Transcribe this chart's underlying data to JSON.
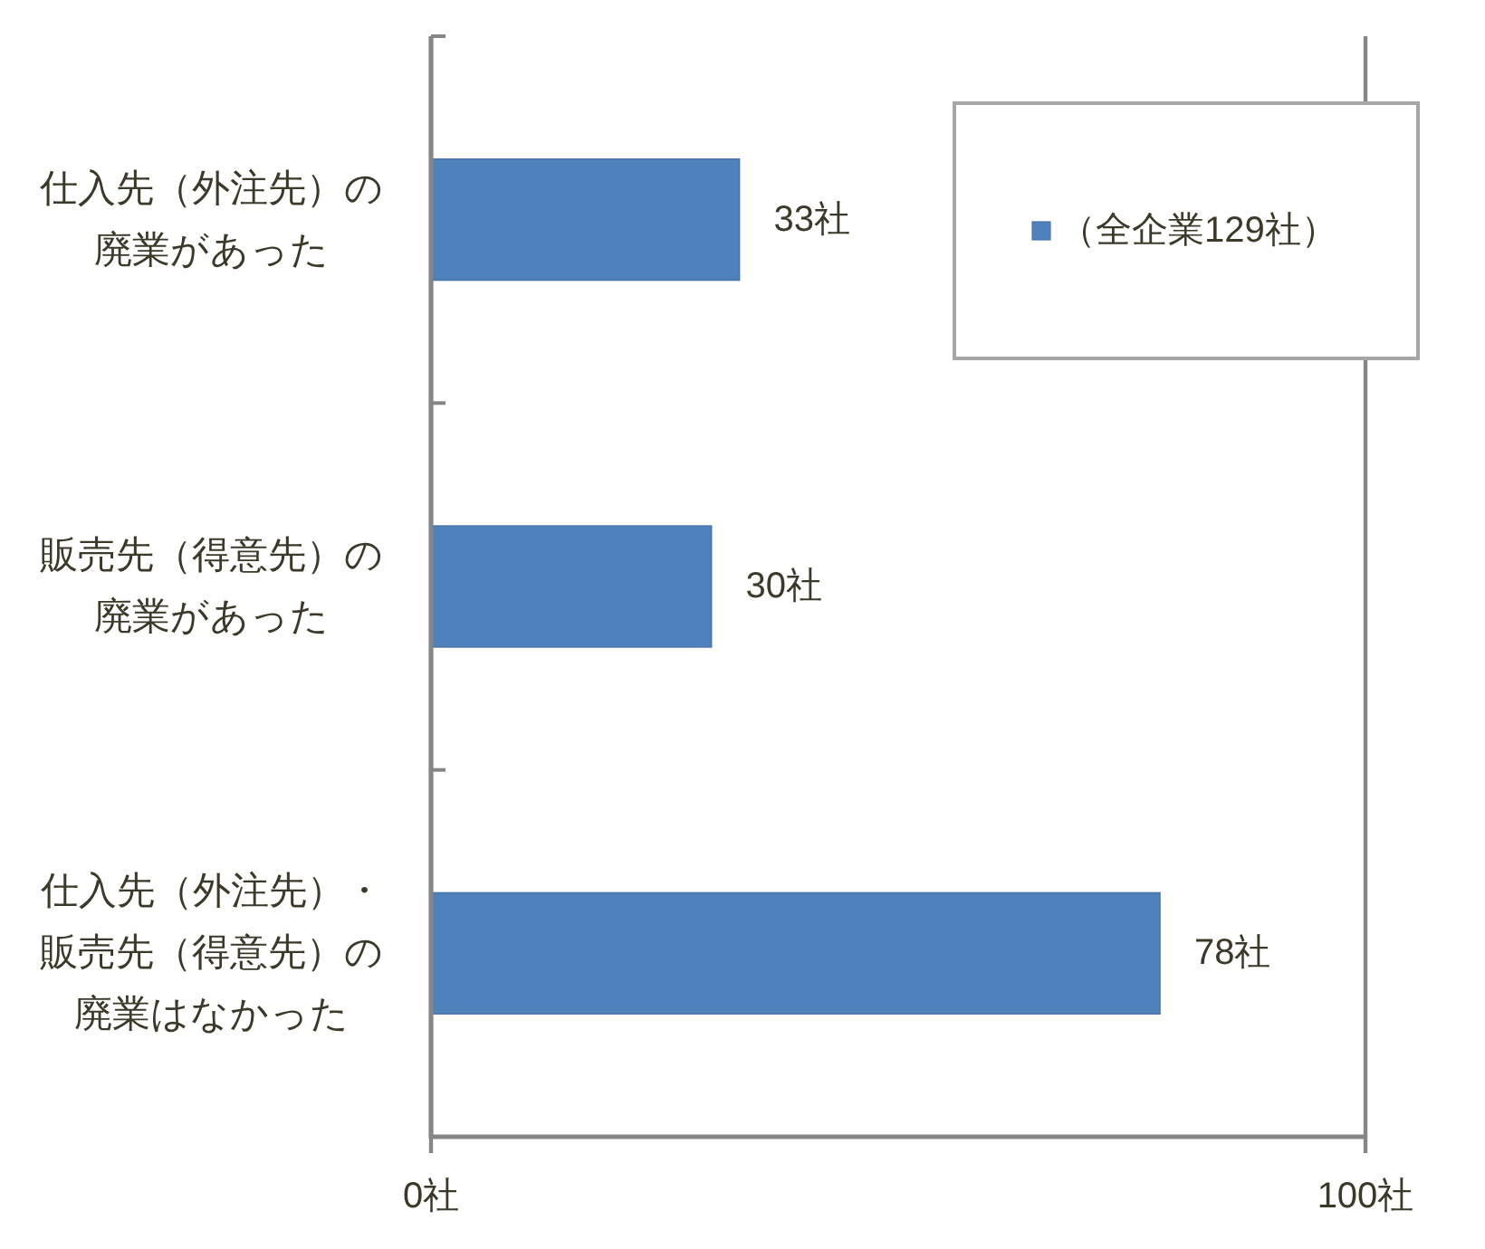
{
  "chart_data": {
    "type": "bar",
    "orientation": "horizontal",
    "categories": [
      "仕入先（外注先）の廃業があった",
      "販売先（得意先）の廃業があった",
      "仕入先（外注先）・販売先（得意先）の廃業はなかった"
    ],
    "series": [
      {
        "name": "（全企業129社）",
        "color": "#4f81bd",
        "values": [
          33,
          30,
          78
        ],
        "value_labels": [
          "33社",
          "30社",
          "78社"
        ]
      }
    ],
    "xlim": [
      0,
      100
    ],
    "xticks": [
      {
        "value": 0,
        "label": "0社"
      },
      {
        "value": 100,
        "label": "100社"
      }
    ],
    "grid": "x",
    "legend": "top right"
  }
}
